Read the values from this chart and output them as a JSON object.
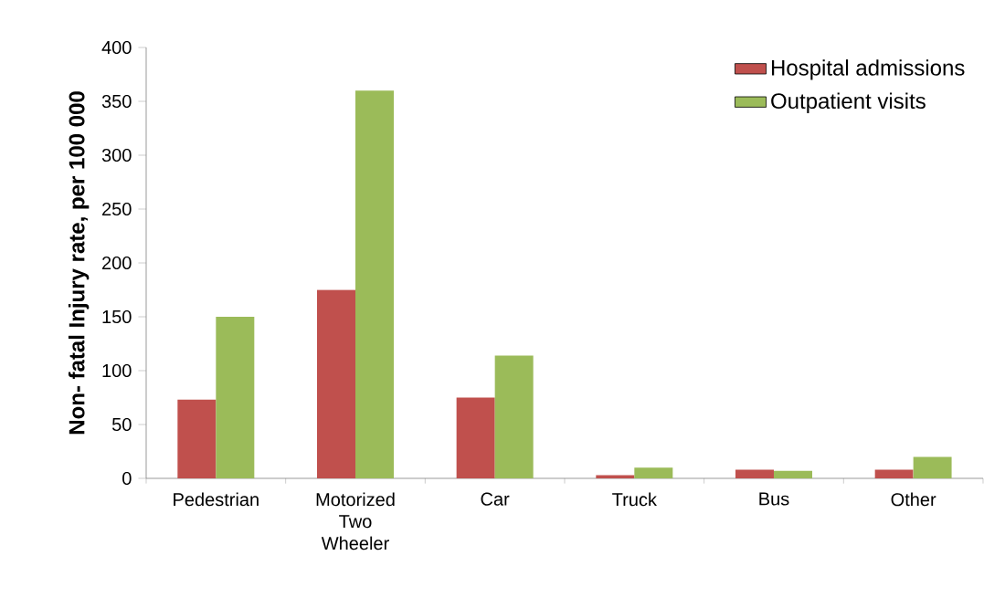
{
  "chart_data": {
    "type": "bar",
    "ylabel": "Non- fatal Injury rate, per 100 000",
    "categories": [
      "Pedestrian",
      "Motorized Two Wheeler",
      "Car",
      "Truck",
      "Bus",
      "Other"
    ],
    "series": [
      {
        "name": "Hospital admissions",
        "color": "#c0504d",
        "values": [
          73,
          175,
          75,
          3,
          8,
          8
        ]
      },
      {
        "name": "Outpatient visits",
        "color": "#9bbb59",
        "values": [
          150,
          360,
          114,
          10,
          7,
          20
        ]
      }
    ],
    "ylim": [
      0,
      400
    ],
    "yticks": [
      0,
      50,
      100,
      150,
      200,
      250,
      300,
      350,
      400
    ],
    "legend": "top right"
  }
}
